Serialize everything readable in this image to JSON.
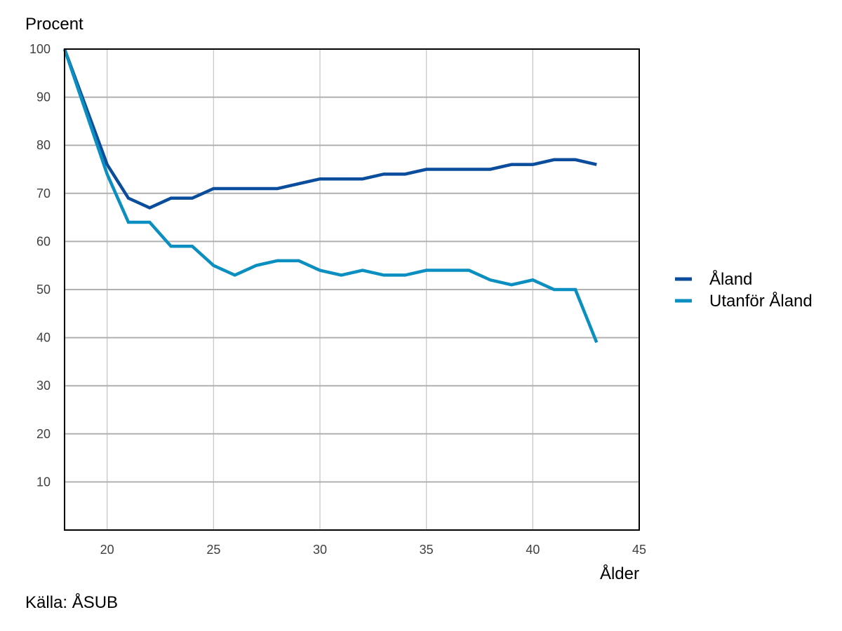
{
  "chart_data": {
    "type": "line",
    "ylabel": "Procent",
    "xlabel": "Ålder",
    "xlim": [
      18,
      45
    ],
    "ylim": [
      0,
      100
    ],
    "x_ticks": [
      20,
      25,
      30,
      35,
      40,
      45
    ],
    "y_ticks": [
      10,
      20,
      30,
      40,
      50,
      60,
      70,
      80,
      90,
      100
    ],
    "grid": true,
    "legend_position": "right",
    "x": [
      18,
      19,
      20,
      21,
      22,
      23,
      24,
      25,
      26,
      27,
      28,
      29,
      30,
      31,
      32,
      33,
      34,
      35,
      36,
      37,
      38,
      39,
      40,
      41,
      42,
      43
    ],
    "series": [
      {
        "name": "Åland",
        "color": "#0a4d9c",
        "values": [
          100,
          88,
          76,
          69,
          67,
          69,
          69,
          71,
          71,
          71,
          71,
          72,
          73,
          73,
          73,
          74,
          74,
          75,
          75,
          75,
          75,
          76,
          76,
          77,
          77,
          76
        ]
      },
      {
        "name": "Utanför Åland",
        "color": "#0a8fc0",
        "values": [
          100,
          87,
          74,
          64,
          64,
          59,
          59,
          55,
          53,
          55,
          56,
          56,
          54,
          53,
          54,
          53,
          53,
          54,
          54,
          54,
          52,
          51,
          52,
          50,
          50,
          39
        ]
      }
    ]
  },
  "source": "Källa: ÅSUB"
}
